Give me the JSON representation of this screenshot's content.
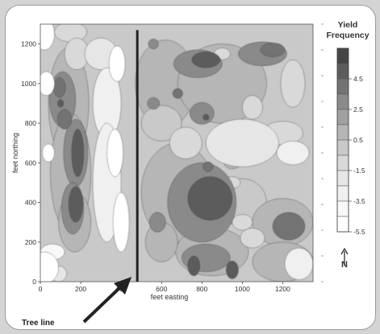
{
  "chart_data": {
    "type": "heatmap",
    "title": "",
    "xlabel": "feet easting",
    "ylabel": "feet northing",
    "xlim": [
      0,
      1350
    ],
    "ylim": [
      0,
      1300
    ],
    "x_ticks": [
      "0",
      "200",
      "400",
      "600",
      "800",
      "1000",
      "1200"
    ],
    "y_ticks": [
      "0",
      "200",
      "400",
      "600",
      "800",
      "1000",
      "1200"
    ],
    "x_tick_values": [
      0,
      200,
      400,
      600,
      800,
      1000,
      1200
    ],
    "y_tick_values": [
      0,
      200,
      400,
      600,
      800,
      1000,
      1200
    ],
    "legend": {
      "title": "Yield Frequency",
      "labels": [
        "4.5",
        "2.5",
        "0.5",
        "-1.5",
        "-3.5",
        "-5.5"
      ],
      "values": [
        5.5,
        4.5,
        3.5,
        2.5,
        1.5,
        0.5,
        -0.5,
        -1.5,
        -2.5,
        -3.5,
        -4.5,
        -5.5
      ],
      "colors": [
        "#454545",
        "#5c5c5c",
        "#737373",
        "#8a8a8a",
        "#a0a0a0",
        "#b6b6b6",
        "#c9c9c9",
        "#d9d9d9",
        "#e6e6e6",
        "#f0f0f0",
        "#f8f8f8",
        "#ffffff"
      ],
      "placement": "right"
    },
    "annotation": {
      "label": "Tree line",
      "tree_line_x": 480,
      "tree_line_y": [
        0,
        1270
      ]
    },
    "north_arrow": "N",
    "field_blobs": [
      {
        "x": 20,
        "y": 1250,
        "value": -5.5,
        "rx": 50,
        "ry": 80
      },
      {
        "x": 30,
        "y": 1000,
        "value": -5.5,
        "rx": 40,
        "ry": 60
      },
      {
        "x": 40,
        "y": 650,
        "value": -5.5,
        "rx": 30,
        "ry": 45
      },
      {
        "x": 20,
        "y": 70,
        "value": -5.5,
        "rx": 70,
        "ry": 80
      },
      {
        "x": 60,
        "y": 150,
        "value": -4.5,
        "rx": 60,
        "ry": 40
      },
      {
        "x": 90,
        "y": 40,
        "value": -2.5,
        "rx": 40,
        "ry": 40
      },
      {
        "x": 150,
        "y": 1260,
        "value": -1.5,
        "rx": 80,
        "ry": 50
      },
      {
        "x": 180,
        "y": 1150,
        "value": -1.5,
        "rx": 60,
        "ry": 80
      },
      {
        "x": 140,
        "y": 900,
        "value": 0.5,
        "rx": 100,
        "ry": 280
      },
      {
        "x": 150,
        "y": 550,
        "value": 0.5,
        "rx": 100,
        "ry": 300
      },
      {
        "x": 170,
        "y": 300,
        "value": 0.5,
        "rx": 80,
        "ry": 150
      },
      {
        "x": 110,
        "y": 920,
        "value": 2.5,
        "rx": 65,
        "ry": 140
      },
      {
        "x": 175,
        "y": 650,
        "value": 2.5,
        "rx": 60,
        "ry": 170
      },
      {
        "x": 160,
        "y": 370,
        "value": 2.5,
        "rx": 55,
        "ry": 130
      },
      {
        "x": 95,
        "y": 980,
        "value": 3.5,
        "rx": 30,
        "ry": 50
      },
      {
        "x": 120,
        "y": 820,
        "value": 3.5,
        "rx": 35,
        "ry": 50
      },
      {
        "x": 185,
        "y": 650,
        "value": 4.5,
        "rx": 30,
        "ry": 120
      },
      {
        "x": 175,
        "y": 390,
        "value": 4.5,
        "rx": 35,
        "ry": 90
      },
      {
        "x": 100,
        "y": 900,
        "value": 4.5,
        "rx": 15,
        "ry": 20
      },
      {
        "x": 300,
        "y": 1150,
        "value": -2.5,
        "rx": 80,
        "ry": 80
      },
      {
        "x": 330,
        "y": 900,
        "value": -3.5,
        "rx": 70,
        "ry": 180
      },
      {
        "x": 330,
        "y": 500,
        "value": -3.5,
        "rx": 70,
        "ry": 300
      },
      {
        "x": 380,
        "y": 1100,
        "value": -5.5,
        "rx": 40,
        "ry": 90
      },
      {
        "x": 370,
        "y": 650,
        "value": -5.5,
        "rx": 40,
        "ry": 120
      },
      {
        "x": 400,
        "y": 300,
        "value": -5.5,
        "rx": 40,
        "ry": 150
      },
      {
        "x": 620,
        "y": 1000,
        "value": 0.5,
        "rx": 150,
        "ry": 220
      },
      {
        "x": 900,
        "y": 1000,
        "value": 0.5,
        "rx": 220,
        "ry": 200
      },
      {
        "x": 780,
        "y": 1100,
        "value": 2.5,
        "rx": 120,
        "ry": 70
      },
      {
        "x": 820,
        "y": 1120,
        "value": 4.5,
        "rx": 70,
        "ry": 40
      },
      {
        "x": 1100,
        "y": 1150,
        "value": 2.5,
        "rx": 120,
        "ry": 60
      },
      {
        "x": 1150,
        "y": 1170,
        "value": 3.5,
        "rx": 60,
        "ry": 35
      },
      {
        "x": 560,
        "y": 1200,
        "value": 2.5,
        "rx": 25,
        "ry": 25
      },
      {
        "x": 900,
        "y": 1150,
        "value": -1.5,
        "rx": 40,
        "ry": 30
      },
      {
        "x": 1050,
        "y": 880,
        "value": -1.5,
        "rx": 50,
        "ry": 60
      },
      {
        "x": 1250,
        "y": 1000,
        "value": -1.5,
        "rx": 60,
        "ry": 120
      },
      {
        "x": 800,
        "y": 850,
        "value": 2.5,
        "rx": 60,
        "ry": 55
      },
      {
        "x": 820,
        "y": 830,
        "value": 4.5,
        "rx": 15,
        "ry": 15
      },
      {
        "x": 600,
        "y": 800,
        "value": -0.5,
        "rx": 100,
        "ry": 90
      },
      {
        "x": 560,
        "y": 900,
        "value": 2.5,
        "rx": 30,
        "ry": 30
      },
      {
        "x": 720,
        "y": 700,
        "value": -1.5,
        "rx": 80,
        "ry": 80
      },
      {
        "x": 1000,
        "y": 700,
        "value": -2.5,
        "rx": 180,
        "ry": 120
      },
      {
        "x": 1250,
        "y": 650,
        "value": -3.5,
        "rx": 80,
        "ry": 60
      },
      {
        "x": 1200,
        "y": 750,
        "value": -1.5,
        "rx": 100,
        "ry": 60
      },
      {
        "x": 680,
        "y": 450,
        "value": 0.5,
        "rx": 180,
        "ry": 250
      },
      {
        "x": 800,
        "y": 400,
        "value": 2.5,
        "rx": 170,
        "ry": 200
      },
      {
        "x": 840,
        "y": 420,
        "value": 4.5,
        "rx": 110,
        "ry": 110
      },
      {
        "x": 830,
        "y": 580,
        "value": 3.5,
        "rx": 25,
        "ry": 25
      },
      {
        "x": 950,
        "y": 600,
        "value": 0.5,
        "rx": 40,
        "ry": 30
      },
      {
        "x": 1000,
        "y": 400,
        "value": -0.5,
        "rx": 120,
        "ry": 120
      },
      {
        "x": 1200,
        "y": 300,
        "value": 0.5,
        "rx": 150,
        "ry": 120
      },
      {
        "x": 1230,
        "y": 280,
        "value": 3.5,
        "rx": 80,
        "ry": 70
      },
      {
        "x": 1200,
        "y": 100,
        "value": 0.5,
        "rx": 150,
        "ry": 100
      },
      {
        "x": 1280,
        "y": 90,
        "value": -3.5,
        "rx": 70,
        "ry": 80
      },
      {
        "x": 850,
        "y": 150,
        "value": 0.5,
        "rx": 180,
        "ry": 120
      },
      {
        "x": 820,
        "y": 120,
        "value": 2.5,
        "rx": 120,
        "ry": 70
      },
      {
        "x": 760,
        "y": 80,
        "value": 4.5,
        "rx": 30,
        "ry": 50
      },
      {
        "x": 950,
        "y": 60,
        "value": 4.5,
        "rx": 30,
        "ry": 45
      },
      {
        "x": 600,
        "y": 200,
        "value": 0.5,
        "rx": 80,
        "ry": 100
      },
      {
        "x": 580,
        "y": 300,
        "value": 2.5,
        "rx": 40,
        "ry": 50
      },
      {
        "x": 1050,
        "y": 220,
        "value": -1.5,
        "rx": 60,
        "ry": 50
      },
      {
        "x": 1000,
        "y": 300,
        "value": -1.5,
        "rx": 50,
        "ry": 40
      },
      {
        "x": 950,
        "y": 500,
        "value": -1.5,
        "rx": 40,
        "ry": 30
      },
      {
        "x": 680,
        "y": 950,
        "value": 3.5,
        "rx": 25,
        "ry": 25
      }
    ]
  }
}
